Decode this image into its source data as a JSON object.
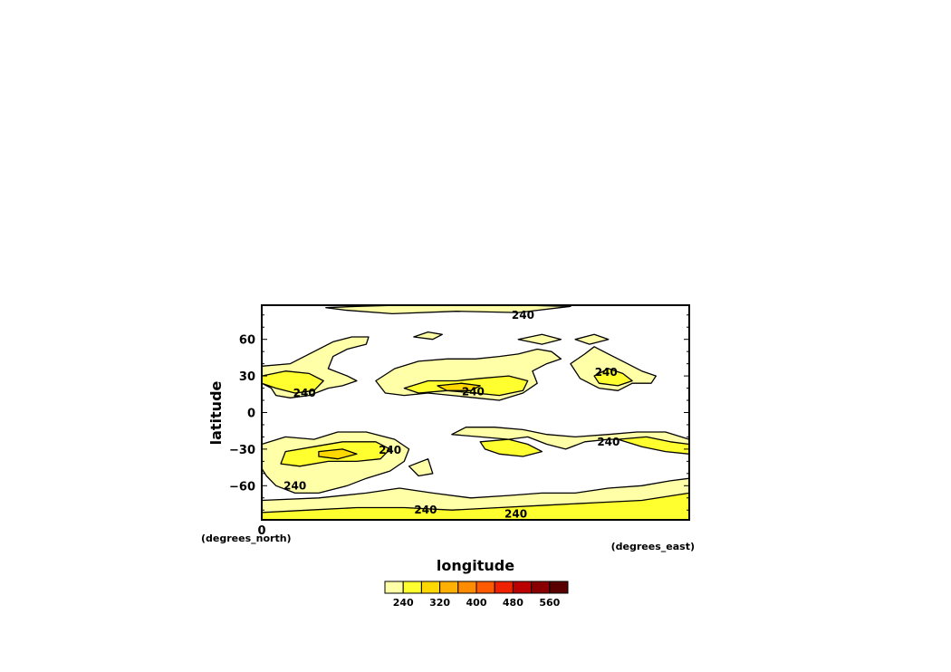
{
  "chart_data": {
    "type": "heatmap",
    "xlabel": "longitude",
    "ylabel": "latitude",
    "x_units": "(degrees_east)",
    "y_units": "(degrees_north)",
    "x_ticks": [
      "0"
    ],
    "y_ticks": [
      {
        "value": 60,
        "label": "60"
      },
      {
        "value": 30,
        "label": "30"
      },
      {
        "value": 0,
        "label": "0"
      },
      {
        "value": -30,
        "label": "−30"
      },
      {
        "value": -60,
        "label": "−60"
      }
    ],
    "ylim": [
      -88,
      88
    ],
    "contour_labels": [
      {
        "text": "240",
        "lon": 110,
        "lat": 80
      },
      {
        "text": "240",
        "lon": 145,
        "lat": 33
      },
      {
        "text": "240",
        "lon": 89,
        "lat": 17
      },
      {
        "text": "240",
        "lon": 18,
        "lat": 16
      },
      {
        "text": "240",
        "lon": 54,
        "lat": -31
      },
      {
        "text": "240",
        "lon": 146,
        "lat": -24
      },
      {
        "text": "240",
        "lon": 14,
        "lat": -60
      },
      {
        "text": "240",
        "lon": 69,
        "lat": -80
      },
      {
        "text": "240",
        "lon": 107,
        "lat": -83
      }
    ],
    "levels": [
      240,
      280,
      320,
      360,
      400,
      440,
      480,
      520,
      560
    ],
    "colorbar": {
      "labels": [
        {
          "value": 240,
          "label": "240"
        },
        {
          "value": 320,
          "label": "320"
        },
        {
          "value": 400,
          "label": "400"
        },
        {
          "value": 480,
          "label": "480"
        },
        {
          "value": 560,
          "label": "560"
        }
      ],
      "colors": [
        "#ffffa8",
        "#ffff30",
        "#ffd800",
        "#ffb000",
        "#ff8c00",
        "#ff5a00",
        "#ee2200",
        "#bb0000",
        "#8a0000",
        "#5a0000"
      ]
    },
    "regions": [
      {
        "level": 240,
        "points": [
          [
            27,
            86
          ],
          [
            40,
            87
          ],
          [
            58,
            88
          ],
          [
            84,
            88
          ],
          [
            110,
            88
          ],
          [
            130,
            87
          ],
          [
            108,
            82
          ],
          [
            82,
            83
          ],
          [
            55,
            81
          ],
          [
            35,
            84
          ]
        ]
      },
      {
        "level": 240,
        "points": [
          [
            108,
            60
          ],
          [
            118,
            64
          ],
          [
            126,
            60
          ],
          [
            118,
            56
          ]
        ]
      },
      {
        "level": 240,
        "points": [
          [
            132,
            60
          ],
          [
            140,
            64
          ],
          [
            146,
            60
          ],
          [
            138,
            56
          ]
        ]
      },
      {
        "level": 240,
        "points": [
          [
            0,
            38
          ],
          [
            12,
            40
          ],
          [
            22,
            50
          ],
          [
            30,
            58
          ],
          [
            38,
            62
          ],
          [
            45,
            62
          ],
          [
            44,
            56
          ],
          [
            36,
            52
          ],
          [
            30,
            46
          ],
          [
            28,
            36
          ],
          [
            36,
            30
          ],
          [
            40,
            26
          ],
          [
            34,
            22
          ],
          [
            28,
            20
          ],
          [
            20,
            14
          ],
          [
            12,
            12
          ],
          [
            6,
            14
          ],
          [
            4,
            20
          ],
          [
            0,
            24
          ]
        ]
      },
      {
        "level": 240,
        "points": [
          [
            48,
            26
          ],
          [
            56,
            36
          ],
          [
            66,
            42
          ],
          [
            78,
            44
          ],
          [
            90,
            44
          ],
          [
            100,
            46
          ],
          [
            108,
            48
          ],
          [
            116,
            52
          ],
          [
            122,
            50
          ],
          [
            126,
            44
          ],
          [
            120,
            40
          ],
          [
            114,
            34
          ],
          [
            116,
            24
          ],
          [
            110,
            16
          ],
          [
            100,
            10
          ],
          [
            90,
            12
          ],
          [
            80,
            14
          ],
          [
            70,
            16
          ],
          [
            60,
            14
          ],
          [
            52,
            16
          ]
        ]
      },
      {
        "level": 240,
        "points": [
          [
            130,
            40
          ],
          [
            136,
            48
          ],
          [
            140,
            54
          ],
          [
            146,
            48
          ],
          [
            152,
            42
          ],
          [
            160,
            34
          ],
          [
            166,
            30
          ],
          [
            164,
            24
          ],
          [
            156,
            24
          ],
          [
            150,
            18
          ],
          [
            142,
            20
          ],
          [
            134,
            28
          ]
        ]
      },
      {
        "level": 240,
        "points": [
          [
            64,
            62
          ],
          [
            70,
            66
          ],
          [
            76,
            64
          ],
          [
            72,
            60
          ]
        ]
      },
      {
        "level": 240,
        "points": [
          [
            0,
            -26
          ],
          [
            10,
            -20
          ],
          [
            22,
            -22
          ],
          [
            32,
            -16
          ],
          [
            44,
            -16
          ],
          [
            56,
            -22
          ],
          [
            62,
            -30
          ],
          [
            60,
            -40
          ],
          [
            54,
            -48
          ],
          [
            44,
            -54
          ],
          [
            36,
            -60
          ],
          [
            24,
            -66
          ],
          [
            14,
            -66
          ],
          [
            6,
            -60
          ],
          [
            2,
            -52
          ],
          [
            0,
            -46
          ]
        ]
      },
      {
        "level": 240,
        "points": [
          [
            80,
            -18
          ],
          [
            92,
            -20
          ],
          [
            104,
            -22
          ],
          [
            112,
            -20
          ],
          [
            120,
            -26
          ],
          [
            128,
            -30
          ],
          [
            136,
            -24
          ],
          [
            146,
            -22
          ],
          [
            158,
            -22
          ],
          [
            170,
            -28
          ],
          [
            180,
            -32
          ],
          [
            180,
            -22
          ],
          [
            170,
            -16
          ],
          [
            158,
            -16
          ],
          [
            146,
            -18
          ],
          [
            132,
            -20
          ],
          [
            120,
            -18
          ],
          [
            110,
            -14
          ],
          [
            98,
            -12
          ],
          [
            86,
            -12
          ]
        ]
      },
      {
        "level": 240,
        "points": [
          [
            0,
            -72
          ],
          [
            24,
            -70
          ],
          [
            44,
            -66
          ],
          [
            58,
            -62
          ],
          [
            72,
            -66
          ],
          [
            88,
            -70
          ],
          [
            104,
            -68
          ],
          [
            118,
            -66
          ],
          [
            132,
            -66
          ],
          [
            146,
            -62
          ],
          [
            160,
            -60
          ],
          [
            172,
            -56
          ],
          [
            180,
            -54
          ],
          [
            180,
            -88
          ],
          [
            0,
            -88
          ]
        ]
      },
      {
        "level": 240,
        "points": [
          [
            62,
            -44
          ],
          [
            70,
            -38
          ],
          [
            72,
            -50
          ],
          [
            66,
            -52
          ]
        ]
      },
      {
        "level": 280,
        "points": [
          [
            0,
            30
          ],
          [
            10,
            34
          ],
          [
            20,
            32
          ],
          [
            26,
            26
          ],
          [
            22,
            18
          ],
          [
            14,
            16
          ],
          [
            6,
            20
          ],
          [
            0,
            24
          ]
        ]
      },
      {
        "level": 280,
        "points": [
          [
            60,
            20
          ],
          [
            70,
            26
          ],
          [
            82,
            26
          ],
          [
            92,
            28
          ],
          [
            104,
            30
          ],
          [
            112,
            26
          ],
          [
            110,
            18
          ],
          [
            100,
            14
          ],
          [
            90,
            16
          ],
          [
            78,
            18
          ],
          [
            66,
            16
          ]
        ]
      },
      {
        "level": 280,
        "points": [
          [
            140,
            30
          ],
          [
            146,
            36
          ],
          [
            152,
            32
          ],
          [
            156,
            26
          ],
          [
            150,
            22
          ],
          [
            142,
            24
          ]
        ]
      },
      {
        "level": 280,
        "points": [
          [
            10,
            -32
          ],
          [
            22,
            -28
          ],
          [
            34,
            -24
          ],
          [
            48,
            -24
          ],
          [
            54,
            -30
          ],
          [
            50,
            -38
          ],
          [
            40,
            -40
          ],
          [
            28,
            -40
          ],
          [
            16,
            -44
          ],
          [
            8,
            -42
          ]
        ]
      },
      {
        "level": 280,
        "points": [
          [
            92,
            -24
          ],
          [
            104,
            -22
          ],
          [
            112,
            -26
          ],
          [
            118,
            -32
          ],
          [
            110,
            -36
          ],
          [
            100,
            -34
          ],
          [
            94,
            -30
          ]
        ]
      },
      {
        "level": 280,
        "points": [
          [
            150,
            -22
          ],
          [
            162,
            -20
          ],
          [
            172,
            -24
          ],
          [
            180,
            -26
          ],
          [
            180,
            -34
          ],
          [
            170,
            -32
          ],
          [
            160,
            -28
          ]
        ]
      },
      {
        "level": 280,
        "points": [
          [
            0,
            -82
          ],
          [
            20,
            -80
          ],
          [
            40,
            -78
          ],
          [
            60,
            -78
          ],
          [
            80,
            -80
          ],
          [
            100,
            -78
          ],
          [
            120,
            -76
          ],
          [
            140,
            -74
          ],
          [
            160,
            -72
          ],
          [
            180,
            -66
          ],
          [
            180,
            -88
          ],
          [
            0,
            -88
          ]
        ]
      },
      {
        "level": 320,
        "points": [
          [
            74,
            22
          ],
          [
            84,
            24
          ],
          [
            92,
            22
          ],
          [
            88,
            18
          ],
          [
            78,
            18
          ]
        ]
      },
      {
        "level": 320,
        "points": [
          [
            24,
            -32
          ],
          [
            34,
            -30
          ],
          [
            40,
            -34
          ],
          [
            32,
            -38
          ],
          [
            24,
            -36
          ]
        ]
      }
    ]
  }
}
